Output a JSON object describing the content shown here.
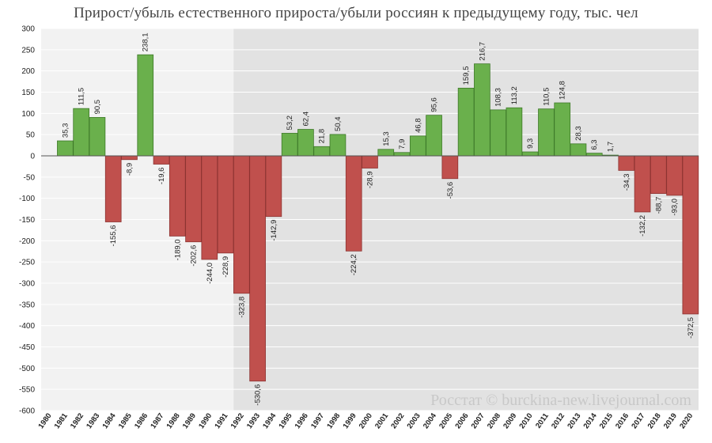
{
  "chart_data": {
    "type": "bar",
    "title": "Прирост/убыль естественного прироста/убыли россиян к предыдущему году, тыс. чел",
    "xlabel": "",
    "ylabel": "",
    "ylim": [
      -600,
      300
    ],
    "yticks": [
      300,
      250,
      200,
      150,
      100,
      50,
      0,
      -50,
      -100,
      -150,
      -200,
      -250,
      -300,
      -350,
      -400,
      -450,
      -500,
      -550,
      -600
    ],
    "grid": true,
    "categories": [
      "1980",
      "1981",
      "1982",
      "1983",
      "1984",
      "1985",
      "1986",
      "1987",
      "1988",
      "1989",
      "1990",
      "1991",
      "1992",
      "1993",
      "1994",
      "1995",
      "1996",
      "1997",
      "1998",
      "1999",
      "2000",
      "2001",
      "2002",
      "2003",
      "2004",
      "2005",
      "2006",
      "2007",
      "2008",
      "2009",
      "2010",
      "2011",
      "2012",
      "2013",
      "2014",
      "2015",
      "2016",
      "2017",
      "2018",
      "2019",
      "2020"
    ],
    "values": [
      null,
      35.3,
      111.5,
      90.5,
      -155.6,
      -8.9,
      238.1,
      -19.6,
      -189.0,
      -202.6,
      -244.0,
      -228.9,
      -323.8,
      -530.6,
      -142.9,
      53.2,
      62.4,
      21.8,
      50.4,
      -224.2,
      -28.9,
      15.3,
      7.9,
      46.8,
      95.6,
      -53.6,
      159.5,
      216.7,
      108.3,
      113.2,
      9.3,
      110.5,
      124.8,
      28.3,
      6.3,
      1.7,
      -34.3,
      -132.2,
      -88.7,
      -93.0,
      -372.5
    ],
    "labels": [
      "",
      "35,3",
      "111,5",
      "90,5",
      "-155,6",
      "-8,9",
      "238,1",
      "-19,6",
      "-189,0",
      "-202,6",
      "-244,0",
      "-228,9",
      "-323,8",
      "-530,6",
      "-142,9",
      "53,2",
      "62,4",
      "21,8",
      "50,4",
      "-224,2",
      "-28,9",
      "15,3",
      "7,9",
      "46,8",
      "95,6",
      "-53,6",
      "159,5",
      "216,7",
      "108,3",
      "113,2",
      "9,3",
      "110,5",
      "124,8",
      "28,3",
      "6,3",
      "1,7",
      "-34,3",
      "-132,2",
      "-88,7",
      "-93,0",
      "-372,5"
    ],
    "colors": {
      "positive": "#6ab04c",
      "positive_stroke": "#3f7a2a",
      "negative": "#c0504d",
      "negative_stroke": "#8c3331",
      "plot_bg_light": "#f2f2f2",
      "plot_bg_dark": "#e2e2e2",
      "grid": "#ffffff"
    },
    "shaded_from_category": "1992",
    "watermark": "Росстат © burckina-new.livejournal.com"
  }
}
